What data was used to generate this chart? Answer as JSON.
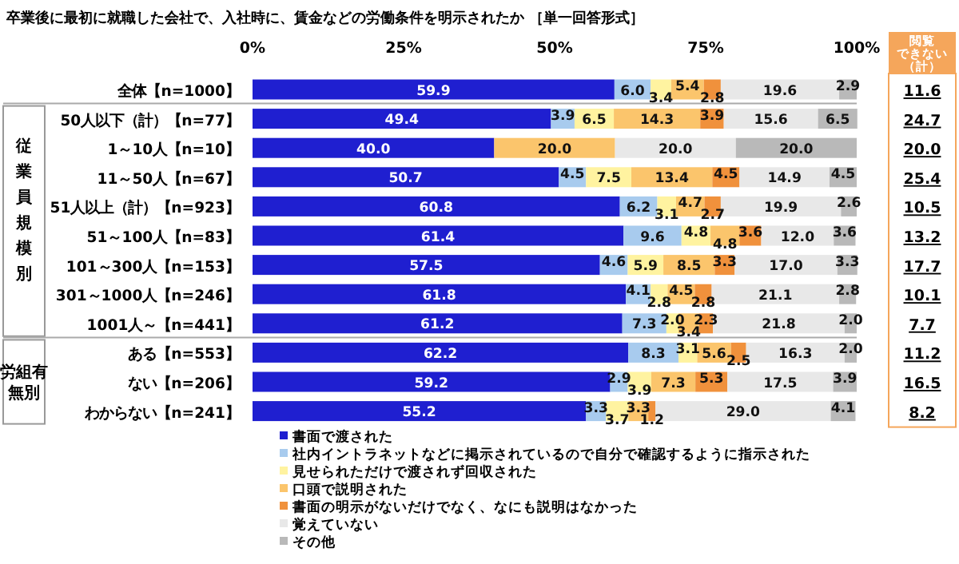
{
  "chart_data": {
    "type": "bar",
    "orientation": "horizontal",
    "stacked": true,
    "legend": "bottom",
    "title": "卒業後に最初に就職した会社で、入社時に、賃金などの労働条件を明示されたか ［単一回答形式］",
    "categories": [
      "全体【n=1000】",
      "50人以下（計）【n=77】",
      "1～10人【n=10】",
      "11～50人【n=67】",
      "51人以上（計）【n=923】",
      "51～100人【n=83】",
      "101～300人【n=153】",
      "301～1000人【n=246】",
      "1001人～【n=441】",
      "ある【n=553】",
      "ない【n=206】",
      "わからない【n=241】"
    ],
    "xlim": [
      0,
      100
    ],
    "xticks": [
      {
        "value": 0,
        "label": "0%"
      },
      {
        "value": 25,
        "label": "25%"
      },
      {
        "value": 50,
        "label": "50%"
      },
      {
        "value": 75,
        "label": "75%"
      },
      {
        "value": 100,
        "label": "100%"
      }
    ],
    "series": [
      {
        "name": "書面で渡された",
        "color": "#1f1fd0",
        "values": [
          59.9,
          49.4,
          40.0,
          50.7,
          60.8,
          61.4,
          57.5,
          61.8,
          61.2,
          62.2,
          59.2,
          55.2
        ],
        "value_labels": [
          "59.9",
          "49.4",
          "40.0",
          "50.7",
          "60.8",
          "61.4",
          "57.5",
          "61.8",
          "61.2",
          "62.2",
          "59.2",
          "55.2"
        ]
      },
      {
        "name": "社内イントラネットなどに掲示されているので自分で確認するように指示された",
        "color": "#a8cbee",
        "values": [
          6.0,
          3.9,
          null,
          4.5,
          6.2,
          9.6,
          4.6,
          4.1,
          7.3,
          8.3,
          2.9,
          3.3
        ],
        "value_labels": [
          "6.0",
          "3.9",
          null,
          "4.5",
          "6.2",
          "9.6",
          "4.6",
          "4.1",
          "7.3",
          "8.3",
          "2.9",
          "3.3"
        ]
      },
      {
        "name": "見せられただけで渡されず回収された",
        "color": "#fff3a0",
        "values": [
          3.4,
          6.5,
          null,
          7.5,
          3.1,
          4.8,
          5.9,
          2.8,
          2.0,
          3.1,
          3.9,
          3.7
        ],
        "value_labels": [
          "3.4",
          "6.5",
          null,
          "7.5",
          "3.1",
          "4.8",
          "5.9",
          "2.8",
          "2.0",
          "3.1",
          "3.9",
          "3.7"
        ]
      },
      {
        "name": "口頭で説明された",
        "color": "#fbc56c",
        "values": [
          5.4,
          14.3,
          20.0,
          13.4,
          4.7,
          4.8,
          8.5,
          4.5,
          3.4,
          5.6,
          7.3,
          3.3
        ],
        "value_labels": [
          "5.4",
          "14.3",
          "20.0",
          "13.4",
          "4.7",
          "4.8",
          "8.5",
          "4.5",
          "3.4",
          "5.6",
          "7.3",
          "3.3"
        ]
      },
      {
        "name": "書面の明示がないだけでなく、なにも説明はなかった",
        "color": "#f0913c",
        "values": [
          2.8,
          3.9,
          null,
          4.5,
          2.7,
          3.6,
          3.3,
          2.8,
          2.3,
          2.5,
          5.3,
          1.2
        ],
        "value_labels": [
          "2.8",
          "3.9",
          null,
          "4.5",
          "2.7",
          "3.6",
          "3.3",
          "2.8",
          "2.3",
          "2.5",
          "5.3",
          "1.2"
        ]
      },
      {
        "name": "覚えていない",
        "color": "#e8e8e8",
        "values": [
          19.6,
          15.6,
          20.0,
          14.9,
          19.9,
          12.0,
          17.0,
          21.1,
          21.8,
          16.3,
          17.5,
          29.0
        ],
        "value_labels": [
          "19.6",
          "15.6",
          "20.0",
          "14.9",
          "19.9",
          "12.0",
          "17.0",
          "21.1",
          "21.8",
          "16.3",
          "17.5",
          "29.0"
        ]
      },
      {
        "name": "その他",
        "color": "#b9b9b9",
        "values": [
          2.9,
          6.5,
          20.0,
          4.5,
          2.6,
          3.6,
          3.3,
          2.8,
          2.0,
          2.0,
          3.9,
          4.1
        ],
        "value_labels": [
          "2.9",
          "6.5",
          "20.0",
          "4.5",
          "2.6",
          "3.6",
          "3.3",
          "2.8",
          "2.0",
          "2.0",
          "3.9",
          "4.1"
        ]
      }
    ],
    "annotations": [
      "閲覧できない（計）",
      "11.6",
      "24.7",
      "20.0",
      "25.4",
      "10.5",
      "13.2",
      "17.7",
      "10.1",
      "7.7",
      "11.2",
      "16.5",
      "8.2",
      "従業員規模別",
      "労組有無別"
    ]
  }
}
